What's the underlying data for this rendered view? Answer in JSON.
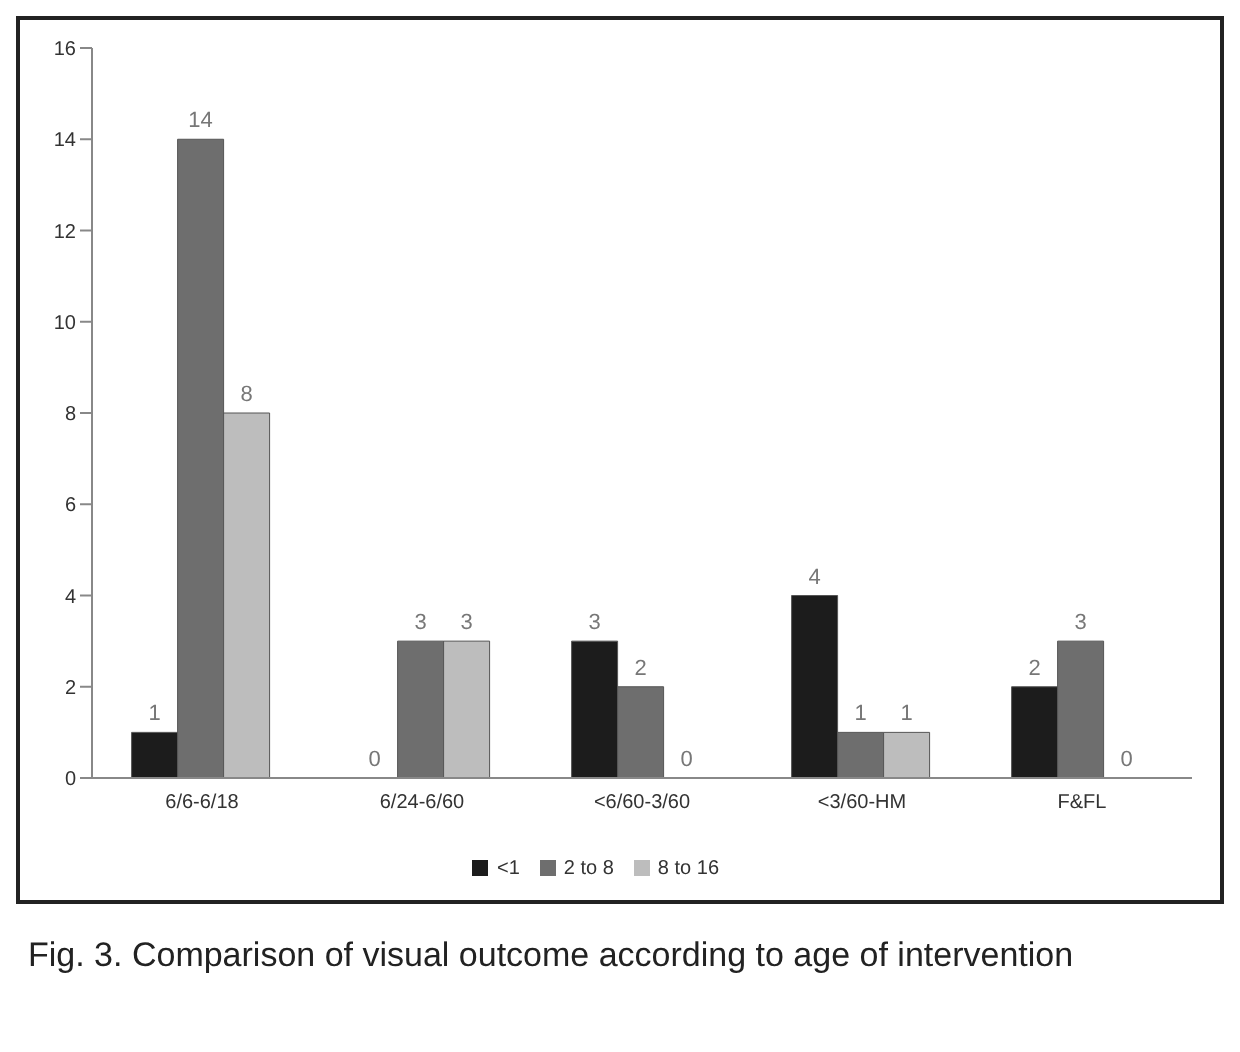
{
  "chart_data": {
    "type": "bar",
    "categories": [
      "6/6-6/18",
      "6/24-6/60",
      "<6/60-3/60",
      "<3/60-HM",
      "F&FL"
    ],
    "series": [
      {
        "name": "<1",
        "color": "#1c1c1c",
        "values": [
          1,
          0,
          3,
          4,
          2
        ]
      },
      {
        "name": "2 to 8",
        "color": "#6e6e6e",
        "values": [
          14,
          3,
          2,
          1,
          3
        ]
      },
      {
        "name": "8 to 16",
        "color": "#bdbdbd",
        "values": [
          8,
          3,
          0,
          1,
          0
        ]
      }
    ],
    "ylim": [
      0,
      16
    ],
    "yticks": [
      0,
      2,
      4,
      6,
      8,
      10,
      12,
      14,
      16
    ],
    "grid": false,
    "legend": "bottom",
    "data_labels": true,
    "annotations": [
      "Fig. 3. Comparison of visual outcome according to age of intervention"
    ]
  }
}
